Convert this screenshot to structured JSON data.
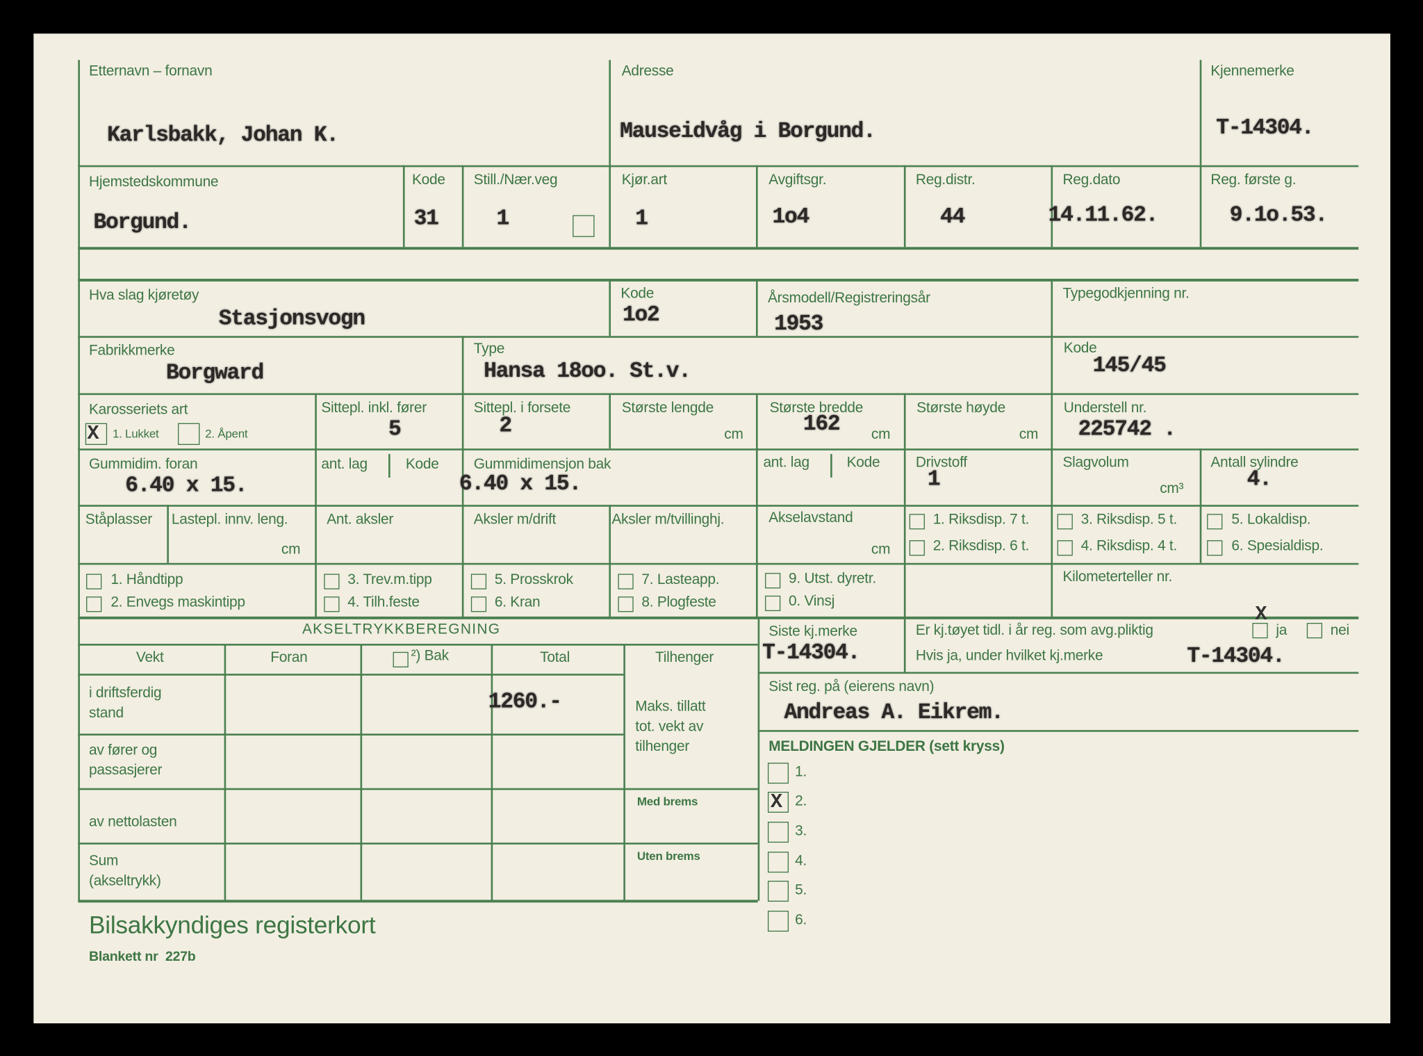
{
  "colors": {
    "form_green": "#3d7644",
    "paper": "#f2eee2",
    "typewriter": "#2b2826"
  },
  "owner": {
    "label": "Etternavn – fornavn",
    "value": "Karlsbakk, Johan K."
  },
  "address": {
    "label": "Adresse",
    "value": "Mauseidvåg i Borgund."
  },
  "plate": {
    "label": "Kjennemerke",
    "value": "T-14304."
  },
  "row2": {
    "municipality": {
      "label": "Hjemstedskommune",
      "value": "Borgund."
    },
    "code": {
      "label": "Kode",
      "value": "31"
    },
    "still": {
      "label": "Still./Nær.veg",
      "value": "1",
      "checked": false
    },
    "kjorart": {
      "label": "Kjør.art",
      "value": "1"
    },
    "avgift": {
      "label": "Avgiftsgr.",
      "value": "1o4"
    },
    "regdistr": {
      "label": "Reg.distr.",
      "value": "44"
    },
    "regdato": {
      "label": "Reg.dato",
      "value": "14.11.62."
    },
    "regforste": {
      "label": "Reg. første g.",
      "value": "9.1o.53."
    }
  },
  "vehicle": {
    "kind": {
      "label": "Hva slag kjøretøy",
      "value": "Stasjonsvogn"
    },
    "kind_code": {
      "label": "Kode",
      "value": "1o2"
    },
    "year": {
      "label": "Årsmodell/Registreringsår",
      "value": "1953"
    },
    "typeapproval": {
      "label": "Typegodkjenning nr."
    },
    "make": {
      "label": "Fabrikkmerke",
      "value": "Borgward"
    },
    "type": {
      "label": "Type",
      "value": "Hansa 18oo. St.v."
    },
    "type_code": {
      "label": "Kode",
      "value": "145/45"
    }
  },
  "body": {
    "label": "Karosseriets art",
    "opt1": "1. Lukket",
    "opt1_checked": true,
    "opt2": "2. Åpent",
    "opt2_checked": false,
    "seats": {
      "label": "Sittepl. inkl. fører",
      "value": "5"
    },
    "front_seats": {
      "label": "Sittepl. i forsete",
      "value": "2"
    },
    "length": {
      "label": "Største lengde",
      "unit": "cm"
    },
    "width": {
      "label": "Største bredde",
      "value": "162",
      "unit": "cm"
    },
    "height": {
      "label": "Største høyde",
      "unit": "cm"
    },
    "chassis": {
      "label": "Understell nr.",
      "value": "225742 ."
    }
  },
  "tires": {
    "front": {
      "label": "Gummidim. foran",
      "value": "6.40 x 15."
    },
    "front_lag": "ant. lag",
    "front_kode": "Kode",
    "rear": {
      "label": "Gummidimensjon bak",
      "value": "6.40 x 15."
    },
    "rear_lag": "ant. lag",
    "rear_kode": "Kode",
    "fuel": {
      "label": "Drivstoff",
      "value": "1"
    },
    "displacement": {
      "label": "Slagvolum",
      "unit": "cm³"
    },
    "cylinders": {
      "label": "Antall sylindre",
      "value": "4."
    }
  },
  "axles": {
    "standing": "Ståplasser",
    "cargo_len": "Lastepl. innv. leng.",
    "cargo_unit": "cm",
    "count": "Ant. aksler",
    "drive": "Aksler m/drift",
    "twin": "Aksler m/tvillinghj.",
    "wheelbase": "Akselavstand",
    "wheelbase_unit": "cm",
    "disp": [
      "1. Riksdisp. 7 t.",
      "2. Riksdisp. 6 t.",
      "3. Riksdisp. 5 t.",
      "4. Riksdisp. 4 t.",
      "5. Lokaldisp.",
      "6. Spesialdisp."
    ]
  },
  "equipment": [
    "1. Håndtipp",
    "2. Envegs maskintipp",
    "3. Trev.m.tipp",
    "4. Tilh.feste",
    "5. Prosskrok",
    "6. Kran",
    "7. Lasteapp.",
    "8. Plogfeste",
    "9. Utst. dyretr.",
    "0. Vinsj"
  ],
  "odometer": "Kilometerteller nr.",
  "axle_calc": {
    "title": "AKSELTRYKKBEREGNING",
    "headers": [
      "Vekt",
      "Foran",
      "²) Bak",
      "Total",
      "Tilhenger"
    ],
    "rows": [
      "i driftsferdig\nstand",
      "av fører og\npassasjerer",
      "av nettolasten",
      "Sum\n(akseltrykk)"
    ],
    "total_value": "1260.-",
    "trailer": "Maks. tillatt\ntot. vekt av\ntilhenger",
    "with_brake": "Med brems",
    "without_brake": "Uten brems"
  },
  "history": {
    "last_plate": {
      "label": "Siste kj.merke",
      "value": "T-14304."
    },
    "prev_reg": {
      "label": "Er kj.tøyet tidl. i år reg. som avg.pliktig",
      "yes": "ja",
      "yes_checked": true,
      "no": "nei",
      "no_checked": false
    },
    "prev_plate": {
      "label": "Hvis ja, under hvilket kj.merke",
      "value": "T-14304."
    },
    "last_owner": {
      "label": "Sist reg. på (eierens navn)",
      "value": "Andreas A. Eikrem."
    }
  },
  "message": {
    "title": "MELDINGEN GJELDER (sett kryss)",
    "options": [
      "1.",
      "2.",
      "3.",
      "4.",
      "5.",
      "6."
    ],
    "checked": "2."
  },
  "footer": {
    "title": "Bilsakkyndiges registerkort",
    "form_no": "Blankett nr  227b"
  }
}
